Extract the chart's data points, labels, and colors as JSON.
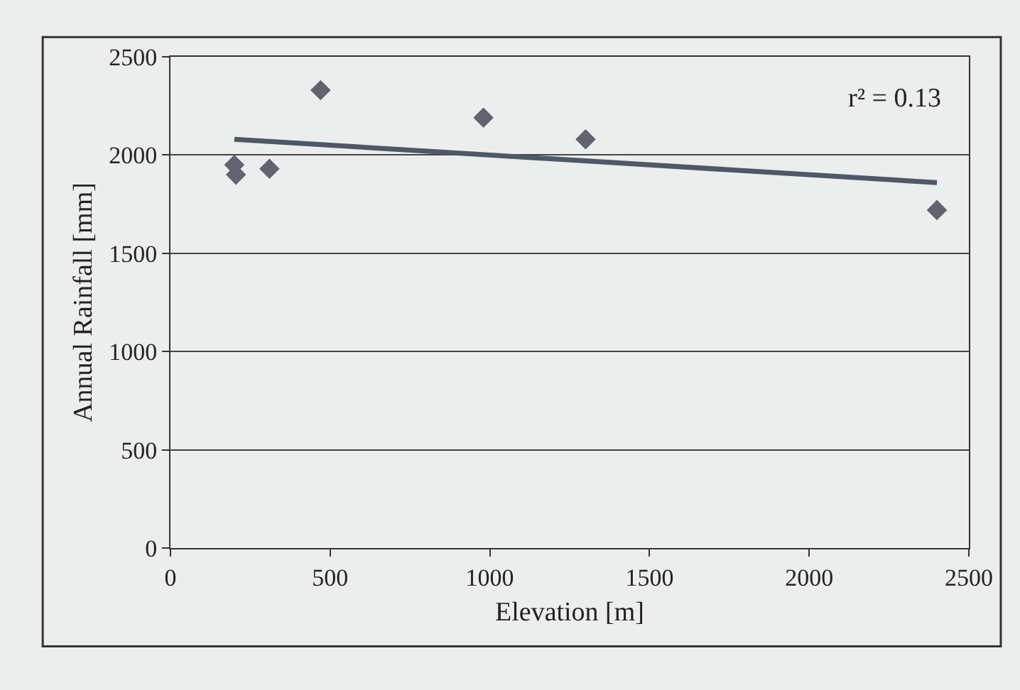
{
  "chart_data": {
    "type": "scatter",
    "xlabel": "Elevation [m]",
    "ylabel": "Annual Rainfall [mm]",
    "xlim": [
      0,
      2500
    ],
    "xticks": [
      0,
      500,
      1000,
      1500,
      2000,
      2500
    ],
    "ylim": [
      0,
      2500
    ],
    "yticks": [
      0,
      500,
      1000,
      1500,
      2000,
      2500
    ],
    "grid": "y",
    "marker": "diamond",
    "x": [
      200,
      205,
      310,
      470,
      980,
      1300,
      2400
    ],
    "series": [
      {
        "color": "#5f6470",
        "values": [
          1950,
          1900,
          1930,
          2330,
          2190,
          2080,
          1720
        ]
      },
      {
        "type": "line",
        "marker": "none",
        "color": "#4f5868",
        "x": [
          200,
          2400
        ],
        "values": [
          2080,
          1860
        ]
      }
    ],
    "annotations": [
      "r² = 0.13"
    ]
  }
}
